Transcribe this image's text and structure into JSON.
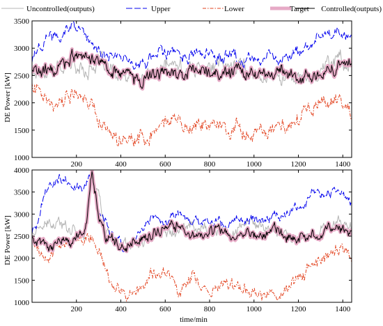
{
  "chart_data": [
    {
      "type": "line",
      "title": "",
      "xlabel": "",
      "ylabel": "DE Power [kW]",
      "xlim": [
        0,
        1440
      ],
      "ylim": [
        1000,
        3500
      ],
      "xticks": [
        200,
        400,
        600,
        800,
        1000,
        1200,
        1400
      ],
      "yticks": [
        1000,
        1500,
        2000,
        2500,
        3000,
        3500
      ],
      "grid": false,
      "legend": "top",
      "series": [
        {
          "name": "Uncontrolled(outputs)",
          "color": "#b4b4b4",
          "style": "solid",
          "x": [
            0,
            60,
            120,
            180,
            240,
            300,
            360,
            420,
            480,
            540,
            600,
            660,
            720,
            780,
            840,
            900,
            960,
            1020,
            1080,
            1140,
            1200,
            1260,
            1320,
            1380,
            1440
          ],
          "y": [
            2550,
            2600,
            2650,
            2700,
            2600,
            2750,
            2550,
            2400,
            2450,
            2500,
            2700,
            2650,
            2600,
            2700,
            2650,
            2700,
            2650,
            2550,
            2450,
            2500,
            2450,
            2450,
            2700,
            2850,
            2600
          ]
        },
        {
          "name": "Upper",
          "color": "#0000ee",
          "style": "dashed",
          "x": [
            0,
            60,
            120,
            180,
            240,
            300,
            360,
            420,
            480,
            540,
            600,
            660,
            720,
            780,
            840,
            900,
            960,
            1020,
            1080,
            1140,
            1200,
            1260,
            1320,
            1380,
            1440
          ],
          "y": [
            2800,
            3150,
            3250,
            3400,
            3250,
            2900,
            2850,
            2850,
            2650,
            2800,
            2900,
            2900,
            2800,
            2900,
            2800,
            2800,
            2750,
            2800,
            2750,
            2800,
            2900,
            3100,
            3250,
            3300,
            3150
          ]
        },
        {
          "name": "Lower",
          "color": "#e2401c",
          "style": "dashdot",
          "x": [
            0,
            60,
            120,
            180,
            240,
            300,
            360,
            420,
            480,
            540,
            600,
            660,
            720,
            780,
            840,
            900,
            960,
            1020,
            1080,
            1140,
            1200,
            1260,
            1320,
            1380,
            1440
          ],
          "y": [
            2400,
            2100,
            2050,
            2200,
            2150,
            1700,
            1500,
            1300,
            1300,
            1450,
            1600,
            1650,
            1550,
            1700,
            1600,
            1500,
            1500,
            1400,
            1500,
            1550,
            1700,
            1900,
            2000,
            2100,
            1850
          ]
        },
        {
          "name": "Target",
          "color": "#e6aac6",
          "style": "thick",
          "x": [
            0,
            60,
            120,
            180,
            240,
            300,
            360,
            420,
            480,
            540,
            600,
            660,
            720,
            780,
            840,
            900,
            960,
            1020,
            1080,
            1140,
            1200,
            1260,
            1320,
            1380,
            1440
          ],
          "y": [
            2600,
            2550,
            2650,
            2850,
            2800,
            2800,
            2600,
            2550,
            2400,
            2500,
            2600,
            2500,
            2550,
            2600,
            2550,
            2600,
            2500,
            2550,
            2450,
            2550,
            2400,
            2500,
            2600,
            2650,
            2600
          ]
        },
        {
          "name": "Controlled(outputs)",
          "color": "#000000",
          "style": "solid",
          "x": [
            0,
            60,
            120,
            180,
            240,
            300,
            360,
            420,
            480,
            540,
            600,
            660,
            720,
            780,
            840,
            900,
            960,
            1020,
            1080,
            1140,
            1200,
            1260,
            1320,
            1380,
            1440
          ],
          "y": [
            2600,
            2550,
            2650,
            2850,
            2800,
            2800,
            2600,
            2550,
            2400,
            2500,
            2600,
            2500,
            2550,
            2600,
            2550,
            2600,
            2500,
            2550,
            2450,
            2550,
            2400,
            2500,
            2600,
            2650,
            2600
          ]
        }
      ]
    },
    {
      "type": "line",
      "title": "",
      "xlabel": "time/min",
      "ylabel": "DE Power [kW]",
      "xlim": [
        0,
        1440
      ],
      "ylim": [
        1000,
        4000
      ],
      "xticks": [
        200,
        400,
        600,
        800,
        1000,
        1200,
        1400
      ],
      "yticks": [
        1000,
        1500,
        2000,
        2500,
        3000,
        3500,
        4000
      ],
      "grid": false,
      "series": [
        {
          "name": "Uncontrolled(outputs)",
          "color": "#b4b4b4",
          "style": "solid",
          "x": [
            0,
            60,
            120,
            180,
            240,
            270,
            300,
            330,
            360,
            420,
            480,
            540,
            600,
            660,
            720,
            780,
            840,
            900,
            960,
            1020,
            1080,
            1140,
            1200,
            1260,
            1320,
            1380,
            1440
          ],
          "y": [
            2600,
            2700,
            2750,
            2700,
            2600,
            3800,
            3500,
            2600,
            2400,
            2350,
            2300,
            2450,
            2700,
            2700,
            2750,
            2700,
            2550,
            2600,
            2800,
            2700,
            2650,
            2550,
            2450,
            2550,
            2700,
            2800,
            2700
          ]
        },
        {
          "name": "Upper",
          "color": "#0000ee",
          "style": "dashed",
          "x": [
            0,
            30,
            60,
            120,
            180,
            240,
            270,
            300,
            330,
            360,
            420,
            480,
            540,
            600,
            660,
            720,
            780,
            840,
            900,
            960,
            1020,
            1080,
            1140,
            1200,
            1260,
            1320,
            1380,
            1440
          ],
          "y": [
            2600,
            2900,
            3500,
            3800,
            3650,
            3600,
            3950,
            3000,
            2800,
            2550,
            2200,
            2500,
            3000,
            2850,
            3000,
            2800,
            2900,
            2800,
            2850,
            2800,
            2850,
            2950,
            3000,
            3100,
            3400,
            3550,
            3500,
            3300
          ]
        },
        {
          "name": "Lower",
          "color": "#e2401c",
          "style": "dashdot",
          "x": [
            0,
            60,
            120,
            180,
            240,
            270,
            300,
            330,
            360,
            420,
            480,
            540,
            600,
            660,
            720,
            780,
            840,
            900,
            960,
            1020,
            1080,
            1140,
            1200,
            1260,
            1320,
            1380,
            1440
          ],
          "y": [
            2500,
            2000,
            2300,
            2400,
            2350,
            2550,
            2200,
            1800,
            1400,
            1100,
            1300,
            1600,
            1700,
            1400,
            1550,
            1350,
            1300,
            1350,
            1300,
            1250,
            1150,
            1200,
            1550,
            1800,
            2050,
            2300,
            2000
          ]
        },
        {
          "name": "Target",
          "color": "#e6aac6",
          "style": "thick",
          "x": [
            0,
            60,
            120,
            180,
            240,
            270,
            300,
            330,
            360,
            420,
            480,
            540,
            600,
            660,
            720,
            780,
            840,
            900,
            960,
            1020,
            1080,
            1140,
            1200,
            1260,
            1320,
            1380,
            1440
          ],
          "y": [
            2550,
            2150,
            2500,
            2400,
            2600,
            3900,
            3000,
            2500,
            2400,
            2200,
            2450,
            2500,
            2650,
            2700,
            2500,
            2500,
            2600,
            2400,
            2550,
            2500,
            2700,
            2450,
            2400,
            2550,
            2600,
            2700,
            2650
          ]
        },
        {
          "name": "Controlled(outputs)",
          "color": "#000000",
          "style": "solid",
          "x": [
            0,
            60,
            120,
            180,
            240,
            270,
            300,
            330,
            360,
            420,
            480,
            540,
            600,
            660,
            720,
            780,
            840,
            900,
            960,
            1020,
            1080,
            1140,
            1200,
            1260,
            1320,
            1380,
            1440
          ],
          "y": [
            2550,
            2150,
            2500,
            2400,
            2600,
            3900,
            3000,
            2500,
            2400,
            2200,
            2450,
            2500,
            2650,
            2700,
            2500,
            2500,
            2600,
            2400,
            2550,
            2500,
            2700,
            2450,
            2400,
            2550,
            2600,
            2700,
            2650
          ]
        }
      ]
    }
  ]
}
